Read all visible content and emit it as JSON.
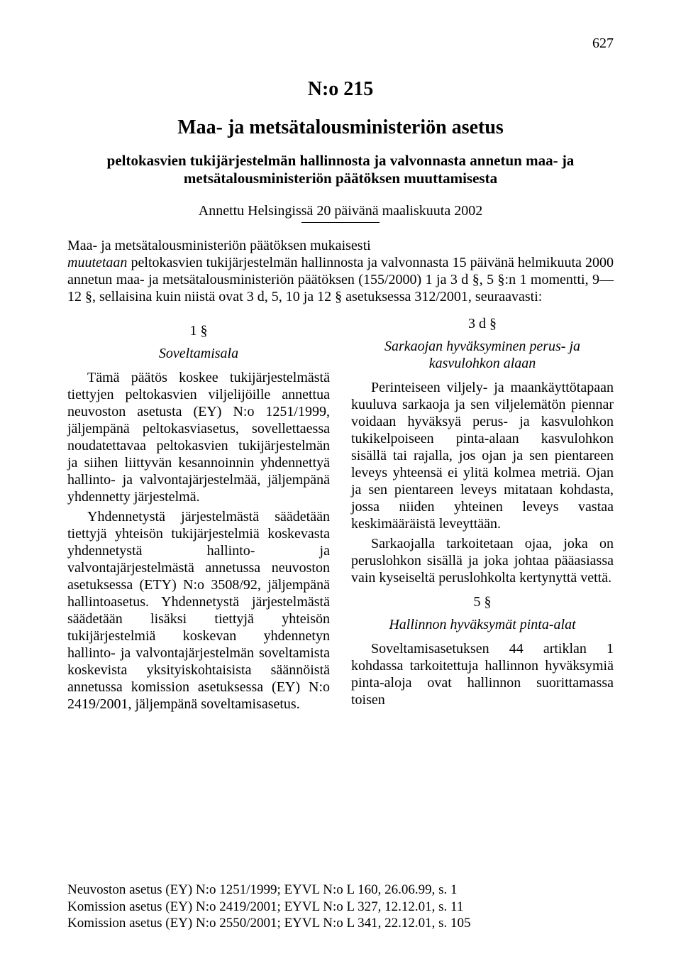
{
  "page_number": "627",
  "doc_number": "N:o 215",
  "title": "Maa- ja metsätalousministeriön asetus",
  "subtitle": "peltokasvien tukijärjestelmän hallinnosta ja valvonnasta annetun maa- ja metsätalousministeriön päätöksen muuttamisesta",
  "given": "Annettu Helsingissä 20 päivänä maaliskuuta 2002",
  "preamble_1": "Maa- ja metsätalousministeriön päätöksen mukaisesti",
  "preamble_2_prefix": "muutetaan",
  "preamble_2_rest": " peltokasvien tukijärjestelmän hallinnosta ja valvonnasta 15 päivänä helmikuuta 2000 annetun maa- ja metsätalousministeriön päätöksen (155/2000) 1 ja 3 d §, 5 §:n 1 momentti, 9—12 §, sellaisina kuin niistä ovat 3 d, 5, 10 ja 12 § asetuksessa 312/2001, seuraavasti:",
  "left": {
    "s1_num": "1 §",
    "s1_heading": "Soveltamisala",
    "s1_p1": "Tämä päätös koskee tukijärjestelmästä tiettyjen peltokasvien viljelijöille annettua neuvoston asetusta (EY) N:o 1251/1999, jäljempänä peltokasviasetus, sovellettaessa noudatettavaa peltokasvien tukijärjestelmän ja siihen liittyvän kesannoinnin yhdennettyä hallinto- ja valvontajärjestelmää, jäljempänä yhdennetty järjestelmä.",
    "s1_p2": "Yhdennetystä järjestelmästä säädetään tiettyjä yhteisön tukijärjestelmiä koskevasta yhdennetystä hallinto- ja valvontajärjestelmästä annetussa neuvoston asetuksessa (ETY) N:o 3508/92, jäljempänä hallintoasetus. Yhdennetystä järjestelmästä säädetään lisäksi tiettyjä yhteisön tukijärjestelmiä koskevan yhdennetyn hallinto- ja valvontajärjestelmän soveltamista koskevista yksityiskohtaisista säännöistä annetussa komission asetuksessa (EY) N:o 2419/2001, jäljempänä soveltamisasetus."
  },
  "right": {
    "s3d_num": "3 d §",
    "s3d_heading": "Sarkaojan hyväksyminen perus- ja kasvulohkon alaan",
    "s3d_p1": "Perinteiseen viljely- ja maankäyttötapaan kuuluva sarkaoja ja sen viljelemätön piennar voidaan hyväksyä perus- ja kasvulohkon tukikelpoiseen pinta-alaan kasvulohkon sisällä tai rajalla, jos ojan ja sen pientareen leveys yhteensä ei ylitä kolmea metriä. Ojan ja sen pientareen leveys mitataan kohdasta, jossa niiden yhteinen leveys vastaa keskimääräistä leveyttään.",
    "s3d_p2": "Sarkaojalla tarkoitetaan ojaa, joka on peruslohkon sisällä ja joka johtaa pääasiassa vain kyseiseltä peruslohkolta kertynyttä vettä.",
    "s5_num": "5 §",
    "s5_heading": "Hallinnon hyväksymät pinta-alat",
    "s5_p1": "Soveltamisasetuksen 44 artiklan 1 kohdassa tarkoitettuja hallinnon hyväksymiä pinta-aloja ovat hallinnon suorittamassa toisen"
  },
  "footer": {
    "l1": "Neuvoston asetus (EY) N:o 1251/1999; EYVL N:o L 160, 26.06.99, s. 1",
    "l2": "Komission asetus (EY) N:o 2419/2001; EYVL N:o L 327, 12.12.01, s. 11",
    "l3": "Komission asetus (EY) N:o 2550/2001; EYVL N:o L 341, 22.12.01, s. 105"
  },
  "colors": {
    "text": "#000000",
    "background": "#ffffff"
  },
  "fonts": {
    "body_family": "Times New Roman",
    "body_size_pt": 15,
    "title_size_pt": 21,
    "subtitle_size_pt": 16
  }
}
